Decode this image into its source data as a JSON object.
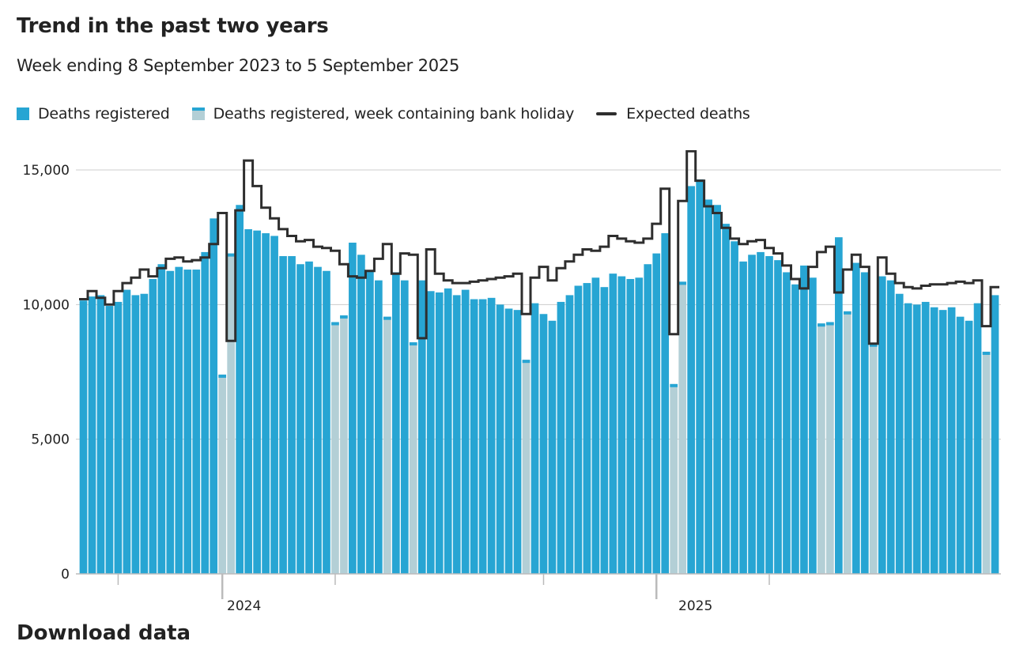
{
  "title": "Trend in the past two years",
  "subtitle": "Week ending 8 September 2023 to 5 September 2025",
  "legend": {
    "bars": "Deaths registered",
    "holiday": "Deaths registered, week containing bank holiday",
    "line": "Expected deaths"
  },
  "footer_heading": "Download data",
  "colors": {
    "bar": "#27a5d3",
    "holiday_bar": "#b3cfd6",
    "expected_line": "#2e2e2e",
    "gridline": "#cccccc",
    "axis": "#bbbbbb"
  },
  "chart_data": {
    "type": "bar",
    "title": "Trend in the past two years",
    "subtitle": "Week ending 8 September 2023 to 5 September 2025",
    "xlabel": "",
    "ylabel": "",
    "ylim": [
      0,
      15000
    ],
    "yticks": [
      0,
      5000,
      10000,
      15000
    ],
    "ytick_labels": [
      "0",
      "5,000",
      "10,000",
      "15,000"
    ],
    "xtick_labels": [
      {
        "label": "2024",
        "week": 19
      },
      {
        "label": "2025",
        "week": 71
      }
    ],
    "grid": "horizontal",
    "legend_position": "top-left",
    "series": [
      {
        "name": "Deaths registered",
        "type": "bar",
        "values": [
          10150,
          10300,
          10350,
          9950,
          10100,
          10550,
          10350,
          10400,
          10950,
          11500,
          11250,
          11400,
          11300,
          11300,
          11950,
          13200,
          7400,
          11900,
          13700,
          12800,
          12750,
          12650,
          12550,
          11800,
          11800,
          11500,
          11600,
          11400,
          11250,
          9350,
          9600,
          12300,
          11850,
          11250,
          10900,
          9550,
          11200,
          10900,
          8600,
          10900,
          10500,
          10450,
          10600,
          10350,
          10550,
          10200,
          10200,
          10250,
          10000,
          9850,
          9800,
          7950,
          10050,
          9650,
          9400,
          10100,
          10350,
          10700,
          10800,
          11000,
          10650,
          11150,
          11050,
          10950,
          11000,
          11500,
          11900,
          12650,
          7050,
          10850,
          14400,
          14650,
          13900,
          13700,
          13000,
          12350,
          11600,
          11850,
          11950,
          11800,
          11650,
          11200,
          10750,
          11450,
          11000,
          9300,
          9350,
          12500,
          9750,
          11550,
          11200,
          8550,
          11050,
          10900,
          10400,
          10050,
          10000,
          10100,
          9900,
          9800,
          9900,
          9550,
          9400,
          10050,
          8250,
          10350
        ],
        "holiday_weeks": [
          16,
          17,
          29,
          30,
          35,
          38,
          51,
          68,
          69,
          85,
          86,
          88,
          91,
          104
        ]
      },
      {
        "name": "Expected deaths",
        "type": "line",
        "values": [
          10200,
          10500,
          10250,
          10000,
          10500,
          10800,
          11000,
          11300,
          11050,
          11350,
          11700,
          11750,
          11600,
          11650,
          11750,
          12250,
          13400,
          8650,
          13500,
          15350,
          14400,
          13600,
          13200,
          12800,
          12550,
          12350,
          12400,
          12150,
          12100,
          12000,
          11500,
          11050,
          11000,
          11250,
          11700,
          12250,
          11150,
          11900,
          11850,
          8750,
          12050,
          11150,
          10900,
          10800,
          10800,
          10850,
          10900,
          10950,
          11000,
          11050,
          11150,
          9650,
          11000,
          11400,
          10900,
          11350,
          11600,
          11850,
          12050,
          12000,
          12150,
          12550,
          12450,
          12350,
          12300,
          12450,
          13000,
          14300,
          8900,
          13850,
          15700,
          14600,
          13650,
          13400,
          12850,
          12450,
          12250,
          12350,
          12400,
          12100,
          11900,
          11450,
          10950,
          10600,
          11400,
          11950,
          12150,
          10450,
          11300,
          11850,
          11400,
          8550,
          11750,
          11150,
          10800,
          10650,
          10600,
          10700,
          10750,
          10750,
          10800,
          10850,
          10800,
          10900,
          9200,
          10650
        ]
      }
    ]
  }
}
